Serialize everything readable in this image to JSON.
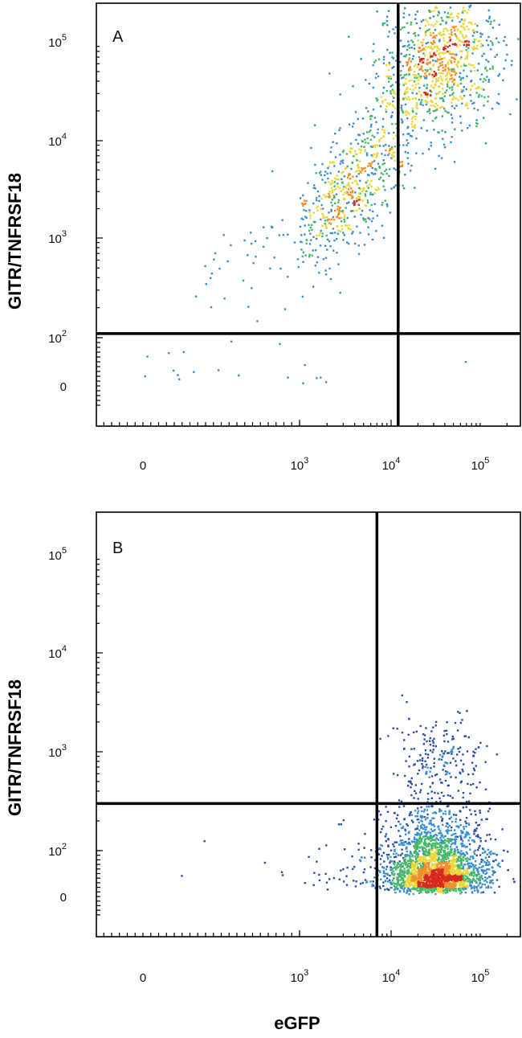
{
  "chart_data": [
    {
      "type": "scatter",
      "label": "A",
      "xlabel": "",
      "ylabel": "GITR/TNFRSF18",
      "x_scale": "biexponential",
      "y_scale": "biexponential",
      "x_ticks": [
        {
          "base": "0",
          "exp": ""
        },
        {
          "base": "10",
          "exp": "3"
        },
        {
          "base": "10",
          "exp": "4"
        },
        {
          "base": "10",
          "exp": "5"
        }
      ],
      "y_ticks": [
        {
          "base": "0",
          "exp": ""
        },
        {
          "base": "10",
          "exp": "2"
        },
        {
          "base": "10",
          "exp": "3"
        },
        {
          "base": "10",
          "exp": "4"
        },
        {
          "base": "10",
          "exp": "5"
        }
      ],
      "gate_x": 12000,
      "gate_y": 110,
      "colormap": [
        "#2a4fa8",
        "#3b8fd0",
        "#46b86a",
        "#e8d83a",
        "#f0902a",
        "#d62a1e"
      ],
      "populations": [
        {
          "center_log": [
            4.55,
            4.8
          ],
          "spread_log": [
            0.35,
            0.35
          ],
          "count": 900,
          "rho": 0.2
        },
        {
          "center_log": [
            3.6,
            3.55
          ],
          "spread_log": [
            0.4,
            0.45
          ],
          "count": 700,
          "rho": 0.75
        },
        {
          "center_log": [
            2.9,
            1.5
          ],
          "spread_log": [
            1.0,
            0.4
          ],
          "count": 20,
          "rho": 0
        }
      ]
    },
    {
      "type": "scatter",
      "label": "B",
      "xlabel": "eGFP",
      "ylabel": "GITR/TNFRSF18",
      "x_scale": "biexponential",
      "y_scale": "biexponential",
      "x_ticks": [
        {
          "base": "0",
          "exp": ""
        },
        {
          "base": "10",
          "exp": "3"
        },
        {
          "base": "10",
          "exp": "4"
        },
        {
          "base": "10",
          "exp": "5"
        }
      ],
      "y_ticks": [
        {
          "base": "0",
          "exp": ""
        },
        {
          "base": "10",
          "exp": "2"
        },
        {
          "base": "10",
          "exp": "3"
        },
        {
          "base": "10",
          "exp": "4"
        },
        {
          "base": "10",
          "exp": "5"
        }
      ],
      "gate_x": 7000,
      "gate_y": 300,
      "colormap": [
        "#2a4fa8",
        "#3b8fd0",
        "#46b86a",
        "#e8d83a",
        "#f0902a",
        "#d62a1e"
      ],
      "populations": [
        {
          "center_log": [
            4.5,
            1.75
          ],
          "spread_log": [
            0.28,
            0.32
          ],
          "count": 2400,
          "rho": 0
        },
        {
          "center_log": [
            4.55,
            2.9
          ],
          "spread_log": [
            0.25,
            0.25
          ],
          "count": 200,
          "rho": 0
        },
        {
          "center_log": [
            3.6,
            1.8
          ],
          "spread_log": [
            0.45,
            0.3
          ],
          "count": 60,
          "rho": 0
        }
      ]
    }
  ]
}
